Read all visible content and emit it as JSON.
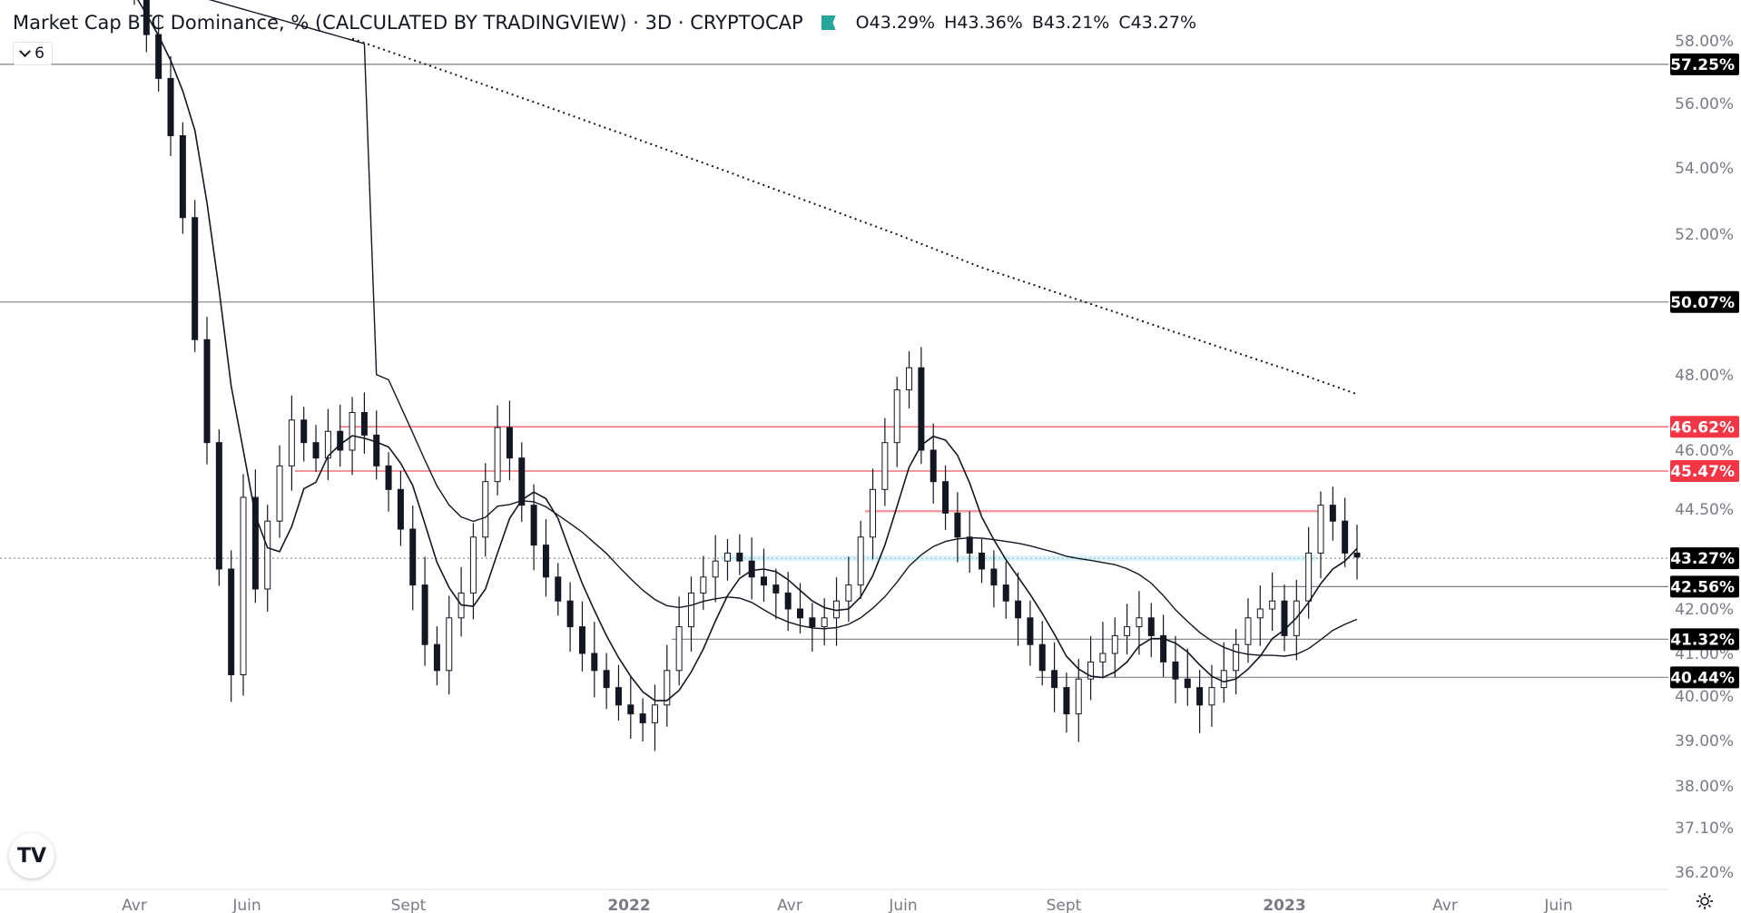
{
  "header": {
    "title": "Market Cap BTC Dominance, % (CALCULATED BY TRADINGVIEW) · 3D · CRYPTOCAP",
    "ohlc": [
      {
        "key": "O",
        "value": "43.29%"
      },
      {
        "key": "H",
        "value": "43.36%"
      },
      {
        "key": "B",
        "value": "43.21%"
      },
      {
        "key": "C",
        "value": "43.27%"
      }
    ],
    "flag_color": "#26a69a"
  },
  "indicator_toggle": {
    "count": "6"
  },
  "logo_text": "TV",
  "chart_data": {
    "type": "candlestick",
    "ylim": [
      36.2,
      58.0
    ],
    "y_ticks": [
      "58.00%",
      "56.00%",
      "54.00%",
      "52.00%",
      "48.00%",
      "46.00%",
      "44.50%",
      "42.00%",
      "41.00%",
      "40.00%",
      "39.00%",
      "38.00%",
      "37.10%",
      "36.20%"
    ],
    "x_ticks": [
      "Avr",
      "Juin",
      "Sept",
      "2022",
      "Avr",
      "Juin",
      "Sept",
      "2023",
      "Avr",
      "Juin"
    ],
    "horizontal_levels": [
      {
        "value": 57.25,
        "label": "57.25%",
        "color": "#131722",
        "label_bg": "#000000"
      },
      {
        "value": 50.07,
        "label": "50.07%",
        "color": "#131722",
        "label_bg": "#000000"
      },
      {
        "value": 46.62,
        "label": "46.62%",
        "color": "#f23645",
        "label_bg": "#f23645"
      },
      {
        "value": 45.47,
        "label": "45.47%",
        "color": "#f23645",
        "label_bg": "#f23645"
      },
      {
        "value": 43.27,
        "label": "43.27%",
        "color": "#131722",
        "label_bg": "#000000",
        "style": "dotted"
      },
      {
        "value": 42.56,
        "label": "42.56%",
        "color": "#131722",
        "label_bg": "#000000"
      },
      {
        "value": 41.32,
        "label": "41.32%",
        "color": "#131722",
        "label_bg": "#000000"
      },
      {
        "value": 40.44,
        "label": "40.44%",
        "color": "#131722",
        "label_bg": "#000000"
      }
    ],
    "close_series": [
      59.5,
      58.2,
      56.8,
      55.0,
      52.5,
      49.0,
      46.2,
      43.0,
      40.5,
      44.8,
      42.5,
      44.2,
      45.6,
      46.8,
      46.2,
      45.8,
      46.5,
      46.0,
      47.0,
      46.4,
      45.6,
      45.0,
      44.0,
      42.6,
      41.2,
      40.6,
      41.8,
      42.4,
      43.8,
      45.2,
      46.6,
      45.8,
      44.6,
      43.6,
      42.8,
      42.2,
      41.6,
      41.0,
      40.6,
      40.2,
      39.8,
      39.6,
      39.4,
      39.8,
      40.6,
      41.6,
      42.4,
      42.8,
      43.2,
      43.4,
      43.2,
      42.8,
      42.6,
      42.4,
      42.0,
      41.8,
      41.6,
      41.8,
      42.2,
      42.6,
      43.8,
      45.0,
      46.2,
      47.6,
      48.2,
      46.0,
      45.2,
      44.4,
      43.8,
      43.4,
      43.0,
      42.6,
      42.2,
      41.8,
      41.2,
      40.6,
      40.2,
      39.6,
      40.4,
      40.8,
      41.0,
      41.4,
      41.6,
      41.8,
      41.4,
      40.8,
      40.4,
      40.2,
      39.8,
      40.2,
      40.6,
      41.2,
      41.8,
      42.0,
      42.2,
      41.4,
      42.2,
      43.4,
      44.6,
      44.2,
      43.4,
      43.3
    ]
  }
}
